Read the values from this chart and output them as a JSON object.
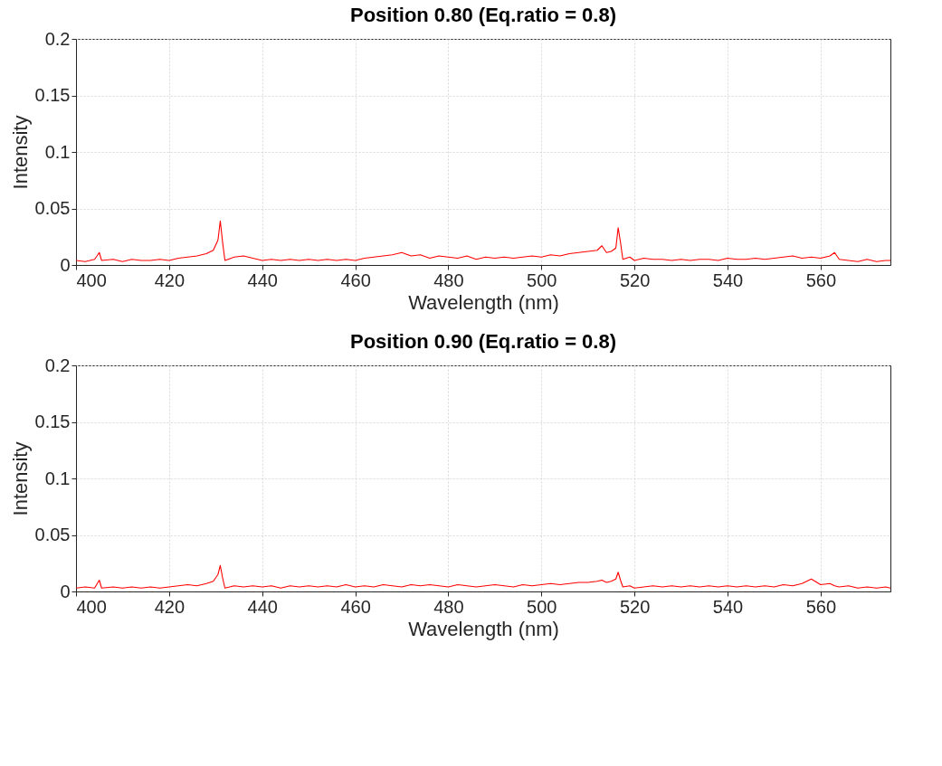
{
  "chart_data": [
    {
      "type": "line",
      "title": "Position 0.80 (Eq.ratio = 0.8)",
      "xlabel": "Wavelength (nm)",
      "ylabel": "Intensity",
      "xlim": [
        400,
        575
      ],
      "xticks": [
        400,
        420,
        440,
        460,
        480,
        500,
        520,
        540,
        560
      ],
      "ylim": [
        0,
        0.2
      ],
      "yticks": [
        0,
        0.05,
        0.1,
        0.15,
        0.2
      ],
      "grid": true,
      "marker": "none",
      "line_style": "solid",
      "series": [
        {
          "color": "#ff0000",
          "x": [
            400,
            402,
            404,
            405,
            405.5,
            408,
            410,
            412,
            414,
            416,
            418,
            420,
            422,
            424,
            426,
            428,
            429.5,
            430.5,
            431,
            431.5,
            432,
            434,
            436,
            438,
            440,
            442,
            444,
            446,
            448,
            450,
            452,
            454,
            456,
            458,
            460,
            462,
            464,
            466,
            468,
            470,
            472,
            474,
            476,
            478,
            480,
            482,
            484,
            486,
            488,
            490,
            492,
            494,
            496,
            498,
            500,
            502,
            504,
            506,
            508,
            510,
            512,
            513,
            514,
            515,
            516,
            516.5,
            517,
            517.5,
            519,
            520,
            522,
            524,
            526,
            528,
            530,
            532,
            534,
            536,
            538,
            540,
            542,
            544,
            546,
            548,
            550,
            552,
            554,
            556,
            558,
            560,
            562,
            563,
            564,
            566,
            568,
            570,
            572,
            574,
            575
          ],
          "values": [
            0.004,
            0.003,
            0.005,
            0.011,
            0.004,
            0.005,
            0.003,
            0.005,
            0.004,
            0.004,
            0.005,
            0.004,
            0.006,
            0.007,
            0.008,
            0.01,
            0.013,
            0.022,
            0.039,
            0.02,
            0.004,
            0.007,
            0.008,
            0.006,
            0.004,
            0.005,
            0.004,
            0.005,
            0.004,
            0.005,
            0.004,
            0.005,
            0.004,
            0.005,
            0.004,
            0.006,
            0.007,
            0.008,
            0.009,
            0.011,
            0.008,
            0.009,
            0.006,
            0.008,
            0.007,
            0.006,
            0.008,
            0.005,
            0.007,
            0.006,
            0.007,
            0.006,
            0.007,
            0.008,
            0.007,
            0.009,
            0.008,
            0.01,
            0.011,
            0.012,
            0.013,
            0.017,
            0.011,
            0.012,
            0.015,
            0.033,
            0.02,
            0.005,
            0.007,
            0.004,
            0.006,
            0.005,
            0.005,
            0.004,
            0.005,
            0.004,
            0.005,
            0.005,
            0.004,
            0.006,
            0.005,
            0.005,
            0.006,
            0.005,
            0.006,
            0.007,
            0.008,
            0.006,
            0.007,
            0.006,
            0.008,
            0.011,
            0.005,
            0.004,
            0.003,
            0.005,
            0.003,
            0.004,
            0.004
          ]
        }
      ]
    },
    {
      "type": "line",
      "title": "Position 0.90 (Eq.ratio = 0.8)",
      "xlabel": "Wavelength (nm)",
      "ylabel": "Intensity",
      "xlim": [
        400,
        575
      ],
      "xticks": [
        400,
        420,
        440,
        460,
        480,
        500,
        520,
        540,
        560
      ],
      "ylim": [
        0,
        0.2
      ],
      "yticks": [
        0,
        0.05,
        0.1,
        0.15,
        0.2
      ],
      "grid": true,
      "marker": "none",
      "line_style": "solid",
      "series": [
        {
          "color": "#ff0000",
          "x": [
            400,
            402,
            404,
            405,
            405.5,
            408,
            410,
            412,
            414,
            416,
            418,
            420,
            422,
            424,
            426,
            428,
            429.5,
            430.5,
            431,
            431.5,
            432,
            434,
            436,
            438,
            440,
            442,
            444,
            446,
            448,
            450,
            452,
            454,
            456,
            458,
            460,
            462,
            464,
            466,
            468,
            470,
            472,
            474,
            476,
            478,
            480,
            482,
            484,
            486,
            488,
            490,
            492,
            494,
            496,
            498,
            500,
            502,
            504,
            506,
            508,
            510,
            512,
            513,
            514,
            515,
            516,
            516.5,
            517,
            517.5,
            519,
            520,
            522,
            524,
            526,
            528,
            530,
            532,
            534,
            536,
            538,
            540,
            542,
            544,
            546,
            548,
            550,
            552,
            554,
            556,
            558,
            560,
            562,
            563,
            564,
            566,
            568,
            570,
            572,
            574,
            575
          ],
          "values": [
            0.003,
            0.004,
            0.003,
            0.01,
            0.003,
            0.004,
            0.003,
            0.004,
            0.003,
            0.004,
            0.003,
            0.004,
            0.005,
            0.006,
            0.005,
            0.007,
            0.009,
            0.015,
            0.023,
            0.012,
            0.003,
            0.005,
            0.004,
            0.005,
            0.004,
            0.005,
            0.003,
            0.005,
            0.004,
            0.005,
            0.004,
            0.005,
            0.004,
            0.006,
            0.004,
            0.005,
            0.004,
            0.006,
            0.005,
            0.004,
            0.006,
            0.005,
            0.006,
            0.005,
            0.004,
            0.006,
            0.005,
            0.004,
            0.005,
            0.006,
            0.005,
            0.004,
            0.006,
            0.005,
            0.006,
            0.007,
            0.006,
            0.007,
            0.008,
            0.008,
            0.009,
            0.01,
            0.008,
            0.009,
            0.011,
            0.017,
            0.01,
            0.004,
            0.005,
            0.003,
            0.004,
            0.005,
            0.004,
            0.005,
            0.004,
            0.005,
            0.004,
            0.005,
            0.004,
            0.005,
            0.004,
            0.005,
            0.004,
            0.005,
            0.004,
            0.006,
            0.005,
            0.007,
            0.011,
            0.006,
            0.007,
            0.005,
            0.004,
            0.005,
            0.003,
            0.004,
            0.003,
            0.004,
            0.003
          ]
        }
      ]
    }
  ]
}
